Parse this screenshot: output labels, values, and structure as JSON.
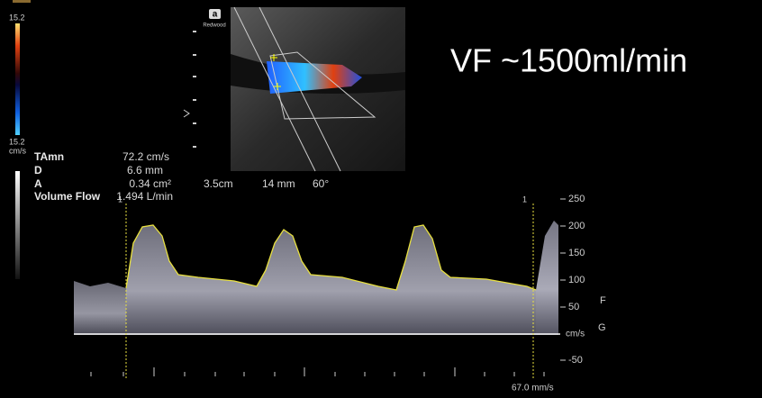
{
  "color_scale": {
    "top": "15.2",
    "bottom": "15.2",
    "unit": "cm/s"
  },
  "logo": {
    "mark": "a",
    "brand": "Redwood"
  },
  "measurements": [
    {
      "label": "TAmn",
      "value": "72.2 cm/s"
    },
    {
      "label": "D",
      "value": "6.6 mm"
    },
    {
      "label": "A",
      "value": "0.34 cm²"
    },
    {
      "label": "Volume Flow",
      "value": "1.494 L/min"
    }
  ],
  "image_info": {
    "depth": "3.5cm",
    "gate": "14 mm",
    "angle": "60°"
  },
  "annotation": "VF ~1500ml/min",
  "cursor_labels": [
    "1",
    "1"
  ],
  "velocity_scale": {
    "ticks": [
      "250",
      "200",
      "150",
      "100",
      "50",
      "-50"
    ],
    "unit": "cm/s"
  },
  "sweep_speed": "67.0 mm/s",
  "side_labels": [
    "F",
    "G"
  ]
}
